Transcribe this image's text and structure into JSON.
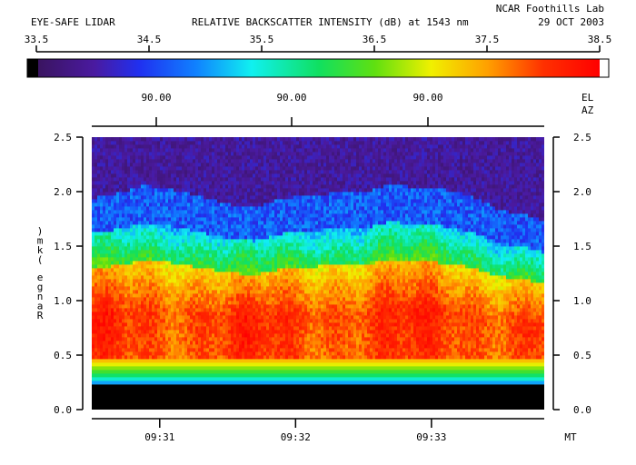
{
  "header": {
    "instrument": "EYE-SAFE LIDAR",
    "title": "RELATIVE BACKSCATTER INTENSITY (dB) at 1543 nm",
    "institution": "NCAR Foothills Lab",
    "date": "29 OCT 2003"
  },
  "colorbar": {
    "min": 33.5,
    "max": 38.5,
    "tick_labels": [
      "33.5",
      "34.5",
      "35.5",
      "36.5",
      "37.5",
      "38.5"
    ]
  },
  "angles": {
    "elevation_values": [
      "90.00",
      "90.00",
      "90.00"
    ],
    "el_label": "EL",
    "az_label": "AZ"
  },
  "chart_data": {
    "type": "heatmap",
    "title": "RELATIVE BACKSCATTER INTENSITY (dB) at 1543 nm",
    "ylabel": "Range (km)",
    "xlabel": "MT",
    "ylim": [
      0.0,
      2.5
    ],
    "y_ticks": [
      "0.0",
      "0.5",
      "1.0",
      "1.5",
      "2.0",
      "2.5"
    ],
    "x_ticks": [
      "09:31",
      "09:32",
      "09:33"
    ],
    "x_range_min": [
      30.5,
      33.83
    ],
    "x_tick_positions_min": [
      31,
      32,
      33
    ],
    "value_range_db": [
      33.5,
      38.5
    ],
    "profile_by_range_km": [
      {
        "range": 0.0,
        "db": null
      },
      {
        "range": 0.15,
        "db": null
      },
      {
        "range": 0.3,
        "db": 35.6
      },
      {
        "range": 0.4,
        "db": 36.6
      },
      {
        "range": 0.5,
        "db": 37.6
      },
      {
        "range": 0.7,
        "db": 38.2
      },
      {
        "range": 1.0,
        "db": 37.8
      },
      {
        "range": 1.3,
        "db": 36.8
      },
      {
        "range": 1.6,
        "db": 35.3
      },
      {
        "range": 1.9,
        "db": 34.6
      },
      {
        "range": 2.1,
        "db": 33.9
      },
      {
        "range": 2.5,
        "db": 33.7
      }
    ],
    "layer_top_km": [
      {
        "t": 30.5,
        "top": 1.9
      },
      {
        "t": 30.7,
        "top": 1.95
      },
      {
        "t": 30.9,
        "top": 2.02
      },
      {
        "t": 31.1,
        "top": 1.98
      },
      {
        "t": 31.3,
        "top": 1.92
      },
      {
        "t": 31.5,
        "top": 1.85
      },
      {
        "t": 31.7,
        "top": 1.82
      },
      {
        "t": 31.9,
        "top": 1.9
      },
      {
        "t": 32.1,
        "top": 1.93
      },
      {
        "t": 32.3,
        "top": 1.95
      },
      {
        "t": 32.5,
        "top": 1.95
      },
      {
        "t": 32.7,
        "top": 2.03
      },
      {
        "t": 32.9,
        "top": 2.0
      },
      {
        "t": 33.1,
        "top": 1.98
      },
      {
        "t": 33.3,
        "top": 1.92
      },
      {
        "t": 33.5,
        "top": 1.8
      },
      {
        "t": 33.7,
        "top": 1.75
      },
      {
        "t": 33.83,
        "top": 1.7
      }
    ]
  }
}
